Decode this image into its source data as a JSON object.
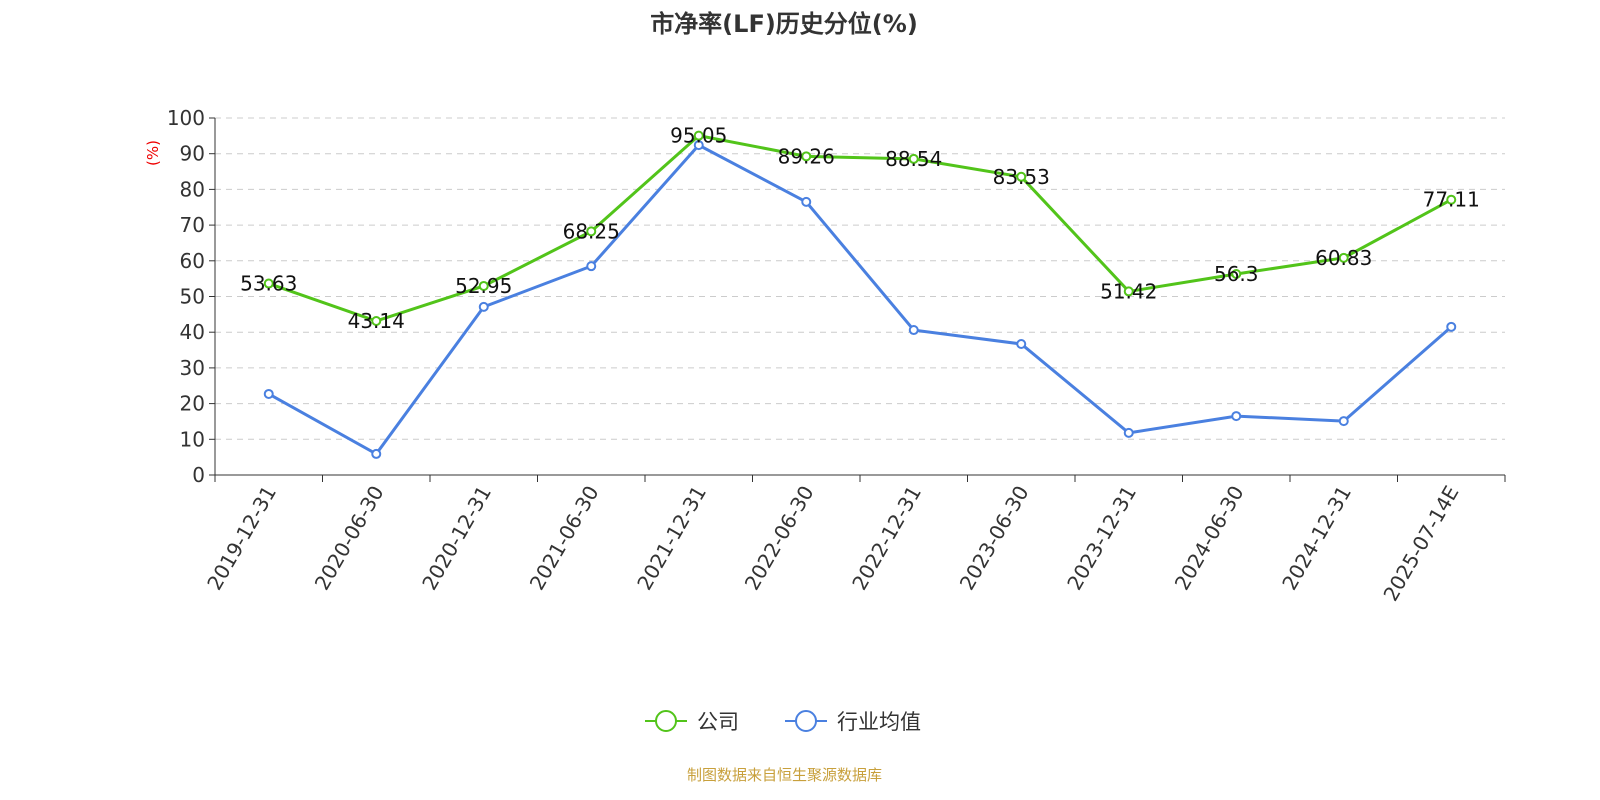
{
  "chart_data": {
    "type": "line",
    "title": "市净率(LF)历史分位(%)",
    "ylabel": "(%)",
    "ylim": [
      0,
      100
    ],
    "yticks": [
      0,
      10,
      20,
      30,
      40,
      50,
      60,
      70,
      80,
      90,
      100
    ],
    "grid": true,
    "legend_position": "bottom",
    "categories": [
      "2019-12-31",
      "2020-06-30",
      "2020-12-31",
      "2021-06-30",
      "2021-12-31",
      "2022-06-30",
      "2022-12-31",
      "2023-06-30",
      "2023-12-31",
      "2024-06-30",
      "2024-12-31",
      "2025-07-14E"
    ],
    "series": [
      {
        "name": "公司",
        "color": "#52c41a",
        "show_labels": true,
        "values": [
          53.63,
          43.14,
          52.95,
          68.25,
          95.05,
          89.26,
          88.54,
          83.53,
          51.42,
          56.3,
          60.83,
          77.11
        ]
      },
      {
        "name": "行业均值",
        "color": "#4a80e0",
        "show_labels": false,
        "values": [
          22.7,
          5.9,
          47.1,
          58.5,
          92.4,
          76.5,
          40.6,
          36.7,
          11.8,
          16.5,
          15.1,
          41.5
        ]
      }
    ]
  },
  "footer": "制图数据来自恒生聚源数据库"
}
